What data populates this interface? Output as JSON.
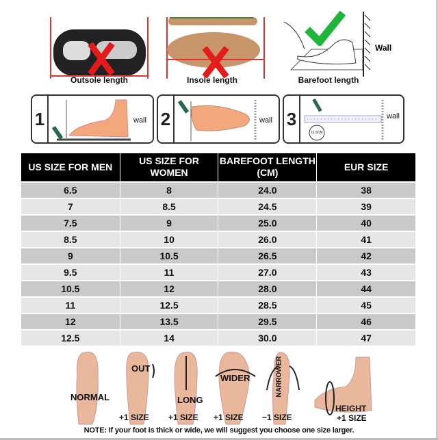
{
  "methods": [
    {
      "caption": "Outsole length",
      "mark": "cross-icon",
      "mark_color": "#e31b1b"
    },
    {
      "caption": "Insole length",
      "mark": "cross-icon",
      "mark_color": "#e31b1b"
    },
    {
      "caption": "Barefoot length",
      "mark": "check-icon",
      "mark_color": "#1fb53a",
      "wall_label": "Wall"
    }
  ],
  "steps": [
    {
      "number": "1",
      "wall_label": "wall"
    },
    {
      "number": "2",
      "wall_label": "wall"
    },
    {
      "number": "3",
      "wall_label": "wall",
      "ruler_label": "11.5CM"
    }
  ],
  "table": {
    "headers": [
      "US SIZE FOR MEN",
      "US SIZE FOR WOMEN",
      "BAREFOOT LENGTH (CM)",
      "EUR SIZE"
    ],
    "rows": [
      [
        "6.5",
        "8",
        "24.0",
        "38"
      ],
      [
        "7",
        "8.5",
        "24.5",
        "39"
      ],
      [
        "7.5",
        "9",
        "25.0",
        "40"
      ],
      [
        "8.5",
        "10",
        "26.0",
        "41"
      ],
      [
        "9",
        "10.5",
        "26.5",
        "42"
      ],
      [
        "9.5",
        "11",
        "27.0",
        "43"
      ],
      [
        "10.5",
        "12",
        "28.0",
        "44"
      ],
      [
        "11",
        "12.5",
        "28.5",
        "45"
      ],
      [
        "12",
        "13.5",
        "29.5",
        "46"
      ],
      [
        "12.5",
        "14",
        "30.0",
        "47"
      ]
    ]
  },
  "foot_types": [
    {
      "label": "NORMAL",
      "size": ""
    },
    {
      "label": "OUT",
      "size": "+1 SIZE"
    },
    {
      "label": "LONG",
      "size": "+1 SIZE"
    },
    {
      "label": "WIDER",
      "size": "+1 SIZE"
    },
    {
      "label": "NARROWER",
      "size": "−1 SIZE"
    },
    {
      "label": "HEIGHT",
      "size": "+1 SIZE"
    }
  ],
  "note": "NOTE: If your foot is thick or wide, we will suggest you choose one size larger."
}
